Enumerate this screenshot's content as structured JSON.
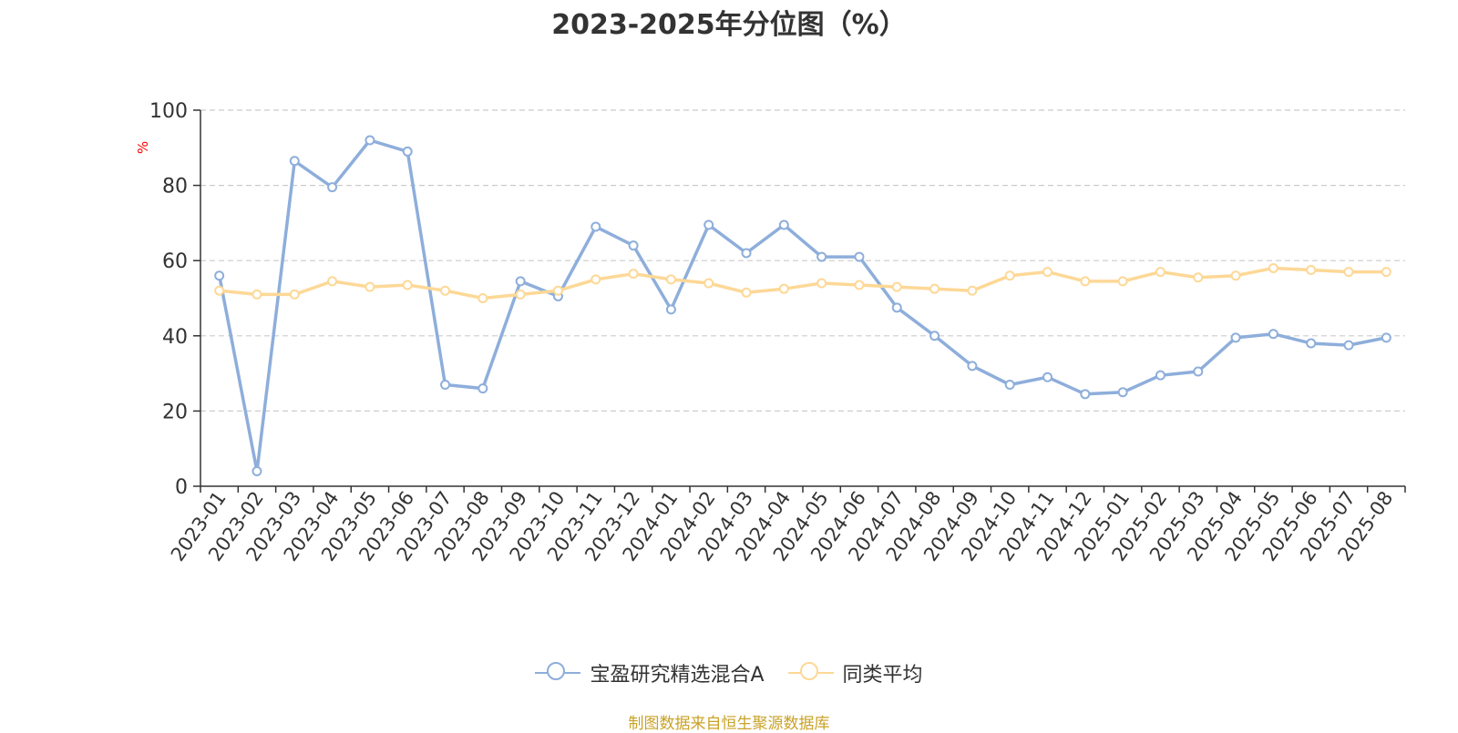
{
  "chart_data": {
    "type": "line",
    "title": "2023-2025年分位图（%）",
    "ylabel": "%",
    "xlabel": "",
    "ylim": [
      0,
      100
    ],
    "yticks": [
      0,
      20,
      40,
      60,
      80,
      100
    ],
    "grid": true,
    "legend_position": "bottom",
    "categories": [
      "2023-01",
      "2023-02",
      "2023-03",
      "2023-04",
      "2023-05",
      "2023-06",
      "2023-07",
      "2023-08",
      "2023-09",
      "2023-10",
      "2023-11",
      "2023-12",
      "2024-01",
      "2024-02",
      "2024-03",
      "2024-04",
      "2024-05",
      "2024-06",
      "2024-07",
      "2024-08",
      "2024-09",
      "2024-10",
      "2024-11",
      "2024-12",
      "2025-01",
      "2025-02",
      "2025-03",
      "2025-04",
      "2025-05",
      "2025-06",
      "2025-07",
      "2025-08"
    ],
    "series": [
      {
        "name": "宝盈研究精选混合A",
        "color": "#8eaedb",
        "values": [
          56,
          4,
          86.5,
          79.5,
          92,
          89,
          27,
          26,
          54.5,
          50.5,
          69,
          64,
          47,
          69.5,
          62,
          69.5,
          61,
          61,
          47.5,
          40,
          32,
          27,
          29,
          24.5,
          25,
          29.5,
          30.5,
          39.5,
          40.5,
          38,
          37.5,
          39.5
        ]
      },
      {
        "name": "同类平均",
        "color": "#fdd896",
        "values": [
          52,
          51,
          51,
          54.5,
          53,
          53.5,
          52,
          50,
          51,
          52,
          55,
          56.5,
          55,
          54,
          51.5,
          52.5,
          54,
          53.5,
          53,
          52.5,
          52,
          56,
          57,
          54.5,
          54.5,
          57,
          55.5,
          56,
          58,
          57.5,
          57,
          57
        ]
      }
    ]
  },
  "source_note": "制图数据来自恒生聚源数据库",
  "colors": {
    "axis": "#333333",
    "grid": "#cccccc",
    "ylabel": "#ff0000",
    "source": "#c9a227"
  }
}
